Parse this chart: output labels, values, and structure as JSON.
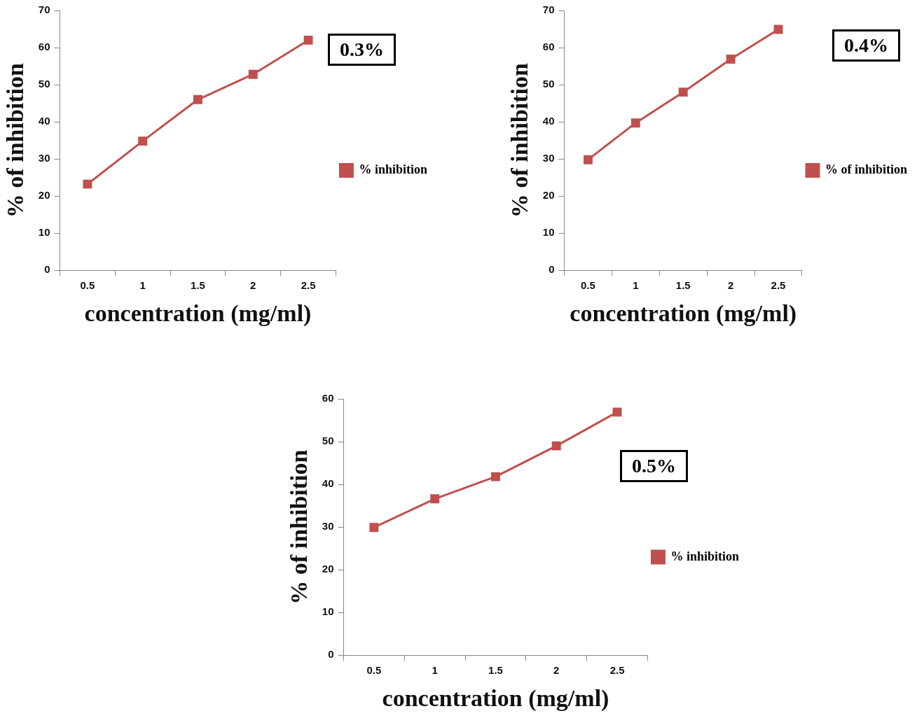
{
  "chart_data": [
    {
      "type": "line",
      "xlabel": "concentration (mg/ml)",
      "ylabel": "% of inhibition",
      "categories": [
        "0.5",
        "1",
        "1.5",
        "2",
        "2.5"
      ],
      "ylim": [
        0,
        70
      ],
      "yticks": [
        0,
        10,
        20,
        30,
        40,
        50,
        60,
        70
      ],
      "legend": "right",
      "marker": "square",
      "annotations": [
        "0.3%"
      ],
      "series": [
        {
          "name": "% inhibition",
          "color": "#c0504d",
          "values": [
            23.2,
            34.8,
            46,
            52.8,
            62
          ]
        }
      ]
    },
    {
      "type": "line",
      "xlabel": "concentration (mg/ml)",
      "ylabel": "% of inhibition",
      "categories": [
        "0.5",
        "1",
        "1.5",
        "2",
        "2.5"
      ],
      "ylim": [
        0,
        70
      ],
      "yticks": [
        0,
        10,
        20,
        30,
        40,
        50,
        60,
        70
      ],
      "legend": "right",
      "marker": "square",
      "annotations": [
        "0.4%"
      ],
      "series": [
        {
          "name": "% of inhibition",
          "color": "#c0504d",
          "values": [
            29.8,
            39.7,
            48,
            56.9,
            64.9
          ]
        }
      ]
    },
    {
      "type": "line",
      "xlabel": "concentration (mg/ml)",
      "ylabel": "% of inhibition",
      "categories": [
        "0.5",
        "1",
        "1.5",
        "2",
        "2.5"
      ],
      "ylim": [
        0,
        60
      ],
      "yticks": [
        0,
        10,
        20,
        30,
        40,
        50,
        60
      ],
      "legend": "right",
      "marker": "square",
      "annotations": [
        "0.5%"
      ],
      "series": [
        {
          "name": "% inhibition",
          "color": "#c0504d",
          "values": [
            29.9,
            36.6,
            41.8,
            49,
            56.9
          ]
        }
      ]
    }
  ]
}
